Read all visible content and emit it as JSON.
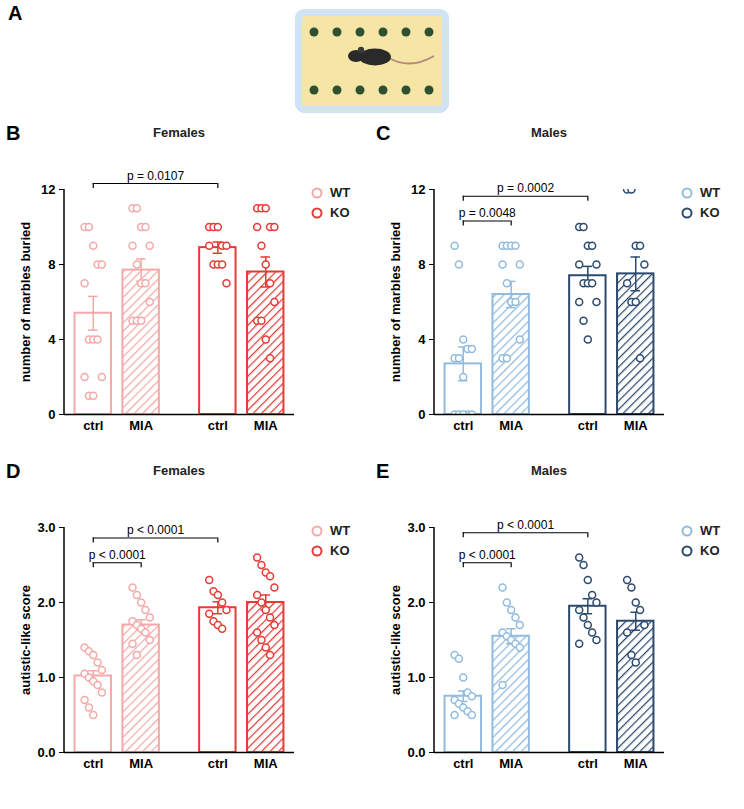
{
  "panel_A": {
    "label": "A"
  },
  "chart_data": [
    {
      "type": "bar",
      "panel_label": "B",
      "title": "Females",
      "ylabel": "number of marbles buried",
      "categories": [
        "ctrl",
        "MIA"
      ],
      "ylim": [
        0,
        12
      ],
      "yticks": [
        0,
        4,
        8,
        12
      ],
      "legend": "top right",
      "series": [
        {
          "name": "WT",
          "color": "#f4a9a8",
          "values": [
            5.4,
            7.7
          ],
          "errors": [
            0.9,
            0.6
          ],
          "points": [
            [
              10,
              10,
              9,
              8,
              8,
              7,
              4,
              4,
              4,
              2,
              2,
              1,
              1
            ],
            [
              11,
              11,
              10,
              10,
              9,
              9,
              8,
              7,
              7,
              6,
              5,
              5,
              5
            ]
          ]
        },
        {
          "name": "KO",
          "color": "#e63b35",
          "values": [
            8.9,
            7.6
          ],
          "errors": [
            0.3,
            0.8
          ],
          "points": [
            [
              10,
              10,
              10,
              9,
              9,
              9,
              8,
              8,
              8,
              7
            ],
            [
              11,
              11,
              11,
              10,
              10,
              10,
              9,
              8,
              7,
              6,
              5,
              5,
              4,
              3
            ]
          ]
        }
      ],
      "annotations": [
        {
          "text": "p = 0.0107",
          "from": [
            "WT",
            "ctrl"
          ],
          "to": [
            "KO",
            "ctrl"
          ]
        }
      ]
    },
    {
      "type": "bar",
      "panel_label": "C",
      "title": "Males",
      "ylabel": "number of marbles buried",
      "categories": [
        "ctrl",
        "MIA"
      ],
      "ylim": [
        0,
        12
      ],
      "yticks": [
        0,
        4,
        8,
        12
      ],
      "legend": "top right",
      "series": [
        {
          "name": "WT",
          "color": "#92bbdd",
          "values": [
            2.7,
            6.4
          ],
          "errors": [
            0.9,
            0.7
          ],
          "points": [
            [
              9,
              8,
              4,
              3.5,
              3.5,
              3,
              3,
              2,
              0,
              0,
              0,
              0,
              0
            ],
            [
              9,
              9,
              9,
              9,
              8,
              8,
              7,
              6,
              6,
              4,
              3,
              3
            ]
          ]
        },
        {
          "name": "KO",
          "color": "#2c4a6e",
          "values": [
            7.4,
            7.5
          ],
          "errors": [
            0.5,
            0.9
          ],
          "points": [
            [
              10,
              10,
              9,
              9,
              8,
              8,
              7,
              7,
              7,
              6,
              6,
              5,
              4
            ],
            [
              12,
              12,
              9,
              9,
              8,
              7,
              6,
              6,
              3
            ]
          ]
        }
      ],
      "annotations": [
        {
          "text": "p = 0.0048",
          "from": [
            "WT",
            "ctrl"
          ],
          "to": [
            "WT",
            "MIA"
          ]
        },
        {
          "text": "p = 0.0002",
          "from": [
            "WT",
            "ctrl"
          ],
          "to": [
            "KO",
            "ctrl"
          ]
        }
      ]
    },
    {
      "type": "bar",
      "panel_label": "D",
      "title": "Females",
      "ylabel": "autistic-like score",
      "categories": [
        "ctrl",
        "MIA"
      ],
      "ylim": [
        0,
        3
      ],
      "yticks": [
        0,
        1,
        2,
        3
      ],
      "legend": "top right",
      "series": [
        {
          "name": "WT",
          "color": "#f4a9a8",
          "values": [
            1.02,
            1.7
          ],
          "errors": [
            0.07,
            0.07
          ],
          "points": [
            [
              1.4,
              1.35,
              1.3,
              1.2,
              1.1,
              1.05,
              1.0,
              0.95,
              0.9,
              0.8,
              0.7,
              0.6,
              0.5
            ],
            [
              2.2,
              2.1,
              2.0,
              1.9,
              1.8,
              1.75,
              1.7,
              1.65,
              1.6,
              1.5,
              1.45,
              1.3
            ]
          ]
        },
        {
          "name": "KO",
          "color": "#e63b35",
          "values": [
            1.93,
            2.0
          ],
          "errors": [
            0.08,
            0.1
          ],
          "points": [
            [
              2.3,
              2.15,
              2.1,
              2.0,
              1.9,
              1.85,
              1.75,
              1.7,
              1.65
            ],
            [
              2.6,
              2.5,
              2.4,
              2.35,
              2.2,
              2.1,
              2.0,
              1.9,
              1.8,
              1.7,
              1.6,
              1.5,
              1.4,
              1.3
            ]
          ]
        }
      ],
      "annotations": [
        {
          "text": "p < 0.0001",
          "from": [
            "WT",
            "ctrl"
          ],
          "to": [
            "WT",
            "MIA"
          ]
        },
        {
          "text": "p < 0.0001",
          "from": [
            "WT",
            "ctrl"
          ],
          "to": [
            "KO",
            "ctrl"
          ]
        }
      ]
    },
    {
      "type": "bar",
      "panel_label": "E",
      "title": "Males",
      "ylabel": "autistic-like score",
      "categories": [
        "ctrl",
        "MIA"
      ],
      "ylim": [
        0,
        3
      ],
      "yticks": [
        0,
        1,
        2,
        3
      ],
      "legend": "top right",
      "series": [
        {
          "name": "WT",
          "color": "#92bbdd",
          "values": [
            0.75,
            1.55
          ],
          "errors": [
            0.07,
            0.1
          ],
          "points": [
            [
              1.3,
              1.25,
              1.0,
              0.8,
              0.75,
              0.7,
              0.65,
              0.6,
              0.55,
              0.5,
              0.5
            ],
            [
              2.2,
              2.0,
              1.9,
              1.8,
              1.7,
              1.6,
              1.55,
              1.5,
              1.45,
              1.4,
              0.9
            ]
          ]
        },
        {
          "name": "KO",
          "color": "#2c4a6e",
          "values": [
            1.95,
            1.75
          ],
          "errors": [
            0.1,
            0.12
          ],
          "points": [
            [
              2.6,
              2.5,
              2.3,
              2.1,
              2.0,
              1.9,
              1.8,
              1.7,
              1.6,
              1.5,
              1.45
            ],
            [
              2.3,
              2.2,
              2.0,
              1.9,
              1.7,
              1.6,
              1.3,
              1.2
            ]
          ]
        }
      ],
      "annotations": [
        {
          "text": "p < 0.0001",
          "from": [
            "WT",
            "ctrl"
          ],
          "to": [
            "WT",
            "MIA"
          ]
        },
        {
          "text": "p < 0.0001",
          "from": [
            "WT",
            "ctrl"
          ],
          "to": [
            "KO",
            "ctrl"
          ]
        }
      ]
    }
  ]
}
